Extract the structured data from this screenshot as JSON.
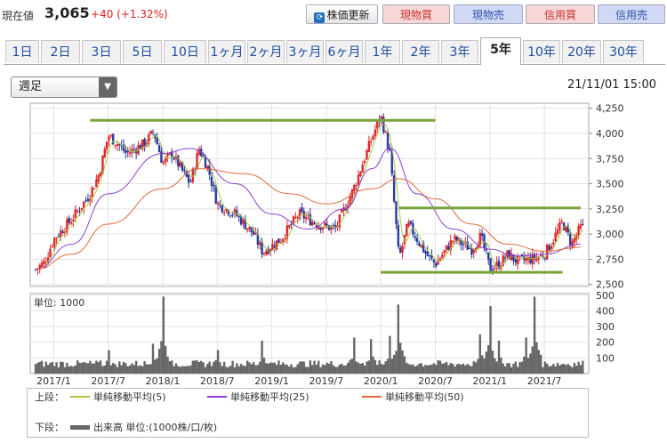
{
  "header": {
    "price_label": "現在値",
    "price": "3,065",
    "change": "+40 (+1.32%)",
    "refresh_label": "株価更新",
    "buttons": {
      "genbutsu_buy": "現物買",
      "genbutsu_sell": "現物売",
      "shinyo_buy": "信用買",
      "shinyo_sell": "信用売"
    }
  },
  "tabs": [
    "1日",
    "2日",
    "3日",
    "5日",
    "10日",
    "1ヶ月",
    "2ヶ月",
    "3ヶ月",
    "6ヶ月",
    "1年",
    "2年",
    "3年",
    "5年",
    "10年",
    "20年",
    "30年"
  ],
  "active_tab": "5年",
  "period_select": "週足",
  "datetime": "21/11/01 15:00",
  "legend": {
    "upper_label": "上段：",
    "lower_label": "下段：",
    "ma5": "単純移動平均(5)",
    "ma25": "単純移動平均(25)",
    "ma50": "単純移動平均(50)",
    "volume": "出来高 単位:(1000株/口/枚)"
  },
  "colors": {
    "up": "#e0262a",
    "down": "#2a3b9e",
    "ma5": "#a6c94a",
    "ma25": "#8d3fd6",
    "ma50": "#e06a3a",
    "trend": "#77a43a",
    "volume": "#666666"
  },
  "chart_data": {
    "type": "candlestick",
    "interval": "weekly",
    "x_ticks": [
      "2017/1",
      "2017/7",
      "2018/1",
      "2018/7",
      "2019/1",
      "2019/7",
      "2020/1",
      "2020/7",
      "2021/1",
      "2021/7"
    ],
    "price_axis": {
      "ticks": [
        2500,
        2750,
        3000,
        3250,
        3500,
        3750,
        4000,
        4250
      ],
      "ylim": [
        2480,
        4300
      ]
    },
    "close_path": {
      "dates": [
        "2016-11",
        "2016-12",
        "2017-01",
        "2017-02",
        "2017-03",
        "2017-05",
        "2017-06",
        "2017-07",
        "2017-08",
        "2017-09",
        "2017-11",
        "2017-12",
        "2018-01",
        "2018-02",
        "2018-04",
        "2018-05",
        "2018-06",
        "2018-07",
        "2018-09",
        "2018-11",
        "2018-12",
        "2019-02",
        "2019-04",
        "2019-06",
        "2019-08",
        "2019-10",
        "2019-12",
        "2020-01",
        "2020-02",
        "2020-03",
        "2020-04",
        "2020-06",
        "2020-07",
        "2020-09",
        "2020-11",
        "2020-12",
        "2021-01",
        "2021-02",
        "2021-03",
        "2021-04",
        "2021-06",
        "2021-07",
        "2021-08",
        "2021-09",
        "2021-10",
        "2021-11"
      ],
      "values": [
        2650,
        2720,
        2950,
        3050,
        3150,
        3400,
        3600,
        3980,
        3900,
        3800,
        3900,
        4020,
        3700,
        3800,
        3500,
        3850,
        3650,
        3300,
        3200,
        3000,
        2820,
        2950,
        3200,
        3100,
        3050,
        3450,
        3950,
        4180,
        3800,
        2750,
        3100,
        2800,
        2700,
        2950,
        2850,
        2980,
        2660,
        2700,
        2800,
        2730,
        2760,
        2800,
        2950,
        3120,
        2900,
        3065
      ]
    },
    "moving_averages": [
      {
        "name": "単純移動平均(25)",
        "dates": [
          "2016-11",
          "2017-03",
          "2017-07",
          "2018-01",
          "2018-04",
          "2018-09",
          "2019-01",
          "2019-05",
          "2019-09",
          "2019-12",
          "2020-02",
          "2020-05",
          "2020-09",
          "2021-01",
          "2021-04",
          "2021-07",
          "2021-11"
        ],
        "values": [
          2650,
          2900,
          3400,
          3800,
          3850,
          3500,
          3200,
          3050,
          3250,
          3650,
          3850,
          3400,
          3050,
          2850,
          2780,
          2800,
          2900
        ]
      },
      {
        "name": "単純移動平均(50)",
        "dates": [
          "2016-11",
          "2017-03",
          "2017-07",
          "2018-01",
          "2018-05",
          "2018-10",
          "2019-03",
          "2019-07",
          "2019-12",
          "2020-03",
          "2020-07",
          "2020-11",
          "2021-03",
          "2021-07",
          "2021-11"
        ],
        "values": [
          2650,
          2800,
          3100,
          3450,
          3650,
          3600,
          3400,
          3300,
          3450,
          3550,
          3350,
          3100,
          2900,
          2830,
          2870
        ]
      }
    ],
    "trend_lines": [
      {
        "from": [
          "2017-05",
          4130
        ],
        "to": [
          "2020-07",
          4130
        ]
      },
      {
        "from": [
          "2020-03",
          3260
        ],
        "to": [
          "2021-11",
          3260
        ]
      },
      {
        "from": [
          "2020-01",
          2620
        ],
        "to": [
          "2021-09",
          2620
        ]
      }
    ],
    "volume": {
      "label": "単位: 1000",
      "ticks": [
        100,
        200,
        300,
        400,
        500
      ],
      "ylim": [
        0,
        510
      ],
      "peaks": [
        {
          "date": "2017-07",
          "value": 150
        },
        {
          "date": "2017-12",
          "value": 190
        },
        {
          "date": "2018-01",
          "value": 490
        },
        {
          "date": "2018-07",
          "value": 150
        },
        {
          "date": "2018-12",
          "value": 210
        },
        {
          "date": "2019-10",
          "value": 230
        },
        {
          "date": "2019-12",
          "value": 220
        },
        {
          "date": "2020-02",
          "value": 240
        },
        {
          "date": "2020-03",
          "value": 440
        },
        {
          "date": "2020-12",
          "value": 250
        },
        {
          "date": "2021-01",
          "value": 430
        },
        {
          "date": "2021-02",
          "value": 210
        },
        {
          "date": "2021-05",
          "value": 230
        },
        {
          "date": "2021-06",
          "value": 490
        }
      ]
    }
  }
}
